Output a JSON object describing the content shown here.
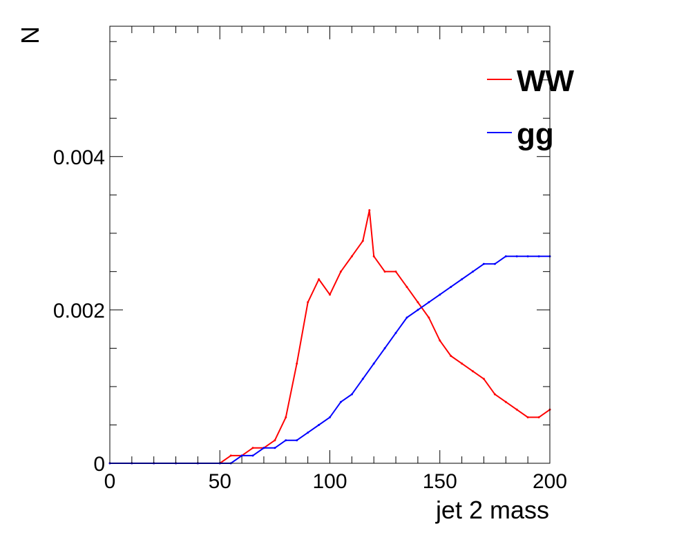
{
  "chart_data": {
    "type": "line",
    "xlabel": "jet 2 mass",
    "ylabel": "N",
    "xlim": [
      0,
      200
    ],
    "ylim": [
      0,
      0.0057
    ],
    "x_ticks": [
      {
        "value": 0,
        "label": "0"
      },
      {
        "value": 50,
        "label": "50"
      },
      {
        "value": 100,
        "label": "100"
      },
      {
        "value": 150,
        "label": "150"
      },
      {
        "value": 200,
        "label": "200"
      }
    ],
    "y_ticks": [
      {
        "value": 0,
        "label": "0"
      },
      {
        "value": 0.002,
        "label": "0.002"
      },
      {
        "value": 0.004,
        "label": "0.004"
      }
    ],
    "legend_position": "top-right",
    "series": [
      {
        "name": "WW",
        "color": "#ff0000",
        "x": [
          0,
          10,
          20,
          30,
          40,
          50,
          55,
          60,
          65,
          70,
          75,
          80,
          85,
          90,
          95,
          100,
          105,
          110,
          115,
          118,
          120,
          125,
          130,
          135,
          140,
          145,
          150,
          155,
          160,
          165,
          170,
          175,
          180,
          185,
          190,
          195,
          200
        ],
        "values": [
          0,
          0,
          0,
          0,
          0,
          0,
          0.0001,
          0.0001,
          0.0002,
          0.0002,
          0.0003,
          0.0006,
          0.0013,
          0.0021,
          0.0024,
          0.0022,
          0.0025,
          0.0027,
          0.0029,
          0.0033,
          0.0027,
          0.0025,
          0.0025,
          0.0023,
          0.0021,
          0.0019,
          0.0016,
          0.0014,
          0.0013,
          0.0012,
          0.0011,
          0.0009,
          0.0008,
          0.0007,
          0.0006,
          0.0006,
          0.0007
        ]
      },
      {
        "name": "gg",
        "color": "#0000ff",
        "x": [
          0,
          10,
          20,
          30,
          40,
          50,
          55,
          60,
          65,
          70,
          75,
          80,
          85,
          90,
          95,
          100,
          105,
          110,
          115,
          120,
          125,
          130,
          135,
          140,
          145,
          150,
          155,
          160,
          165,
          170,
          175,
          180,
          185,
          190,
          195,
          200
        ],
        "values": [
          0,
          0,
          0,
          0,
          0,
          0,
          0,
          0.0001,
          0.0001,
          0.0002,
          0.0002,
          0.0003,
          0.0003,
          0.0004,
          0.0005,
          0.0006,
          0.0008,
          0.0009,
          0.0011,
          0.0013,
          0.0015,
          0.0017,
          0.0019,
          0.002,
          0.0021,
          0.0022,
          0.0023,
          0.0024,
          0.0025,
          0.0026,
          0.0026,
          0.0027,
          0.0027,
          0.0027,
          0.0027,
          0.0027
        ]
      }
    ]
  }
}
